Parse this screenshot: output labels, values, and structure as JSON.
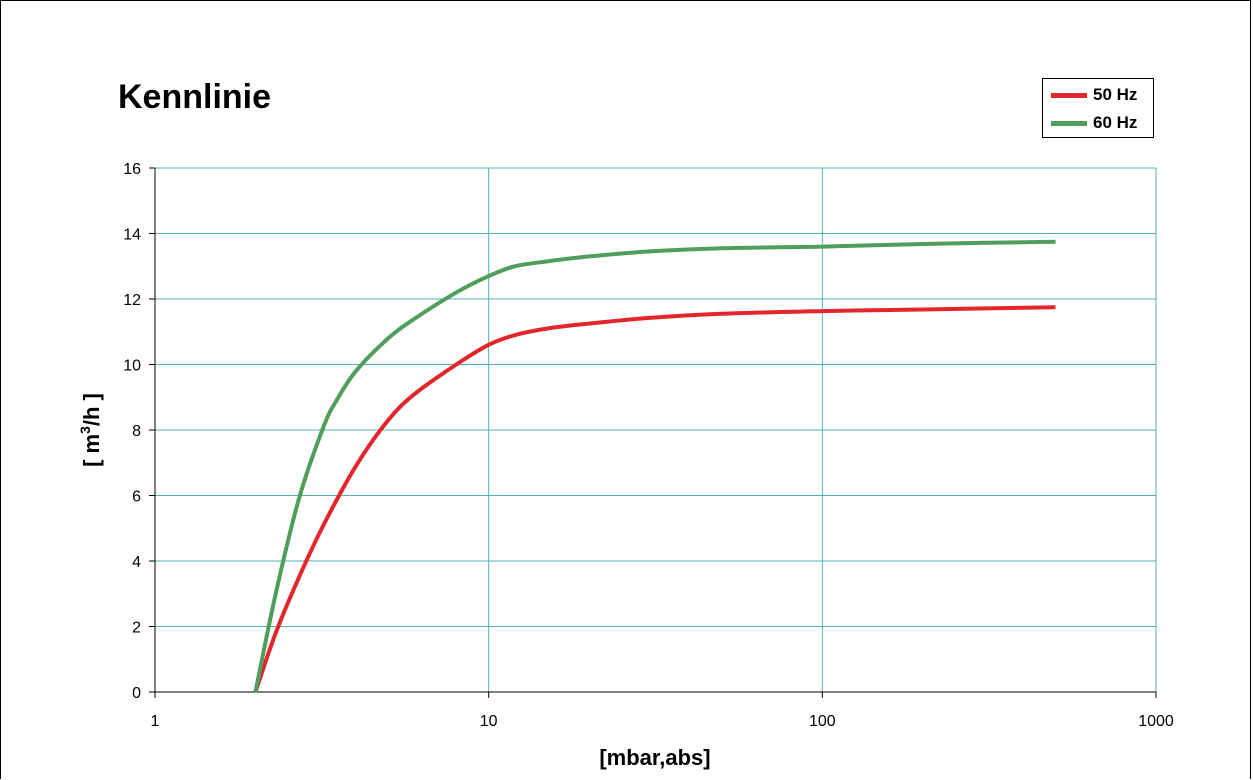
{
  "chart_data": {
    "type": "line",
    "title": "Kennlinie",
    "xlabel": "[mbar,abs]",
    "ylabel": "[ m³/h ]",
    "ylabel_parts": {
      "before": "[ m",
      "sup": "3",
      "after": "/h ]"
    },
    "x_scale": "log",
    "xlim": [
      1,
      1000
    ],
    "ylim": [
      0,
      16
    ],
    "x_ticks": [
      "1",
      "10",
      "100",
      "1000"
    ],
    "y_ticks": [
      "0",
      "2",
      "4",
      "6",
      "8",
      "10",
      "12",
      "14",
      "16"
    ],
    "grid": true,
    "legend_position": "top-right",
    "series": [
      {
        "name": "50 Hz",
        "color": "#e3262b",
        "x": [
          2,
          2.3,
          2.7,
          3.2,
          4,
          5,
          6,
          8,
          10,
          12,
          15,
          20,
          30,
          50,
          100,
          200,
          500
        ],
        "y": [
          0,
          1.8,
          3.5,
          5.1,
          6.9,
          8.3,
          9.1,
          10.0,
          10.6,
          10.9,
          11.1,
          11.25,
          11.42,
          11.55,
          11.63,
          11.68,
          11.75
        ]
      },
      {
        "name": "60 Hz",
        "color": "#4f9e5c",
        "x": [
          2,
          2.3,
          2.7,
          3.2,
          3.5,
          4,
          5,
          6,
          8,
          10,
          12,
          15,
          20,
          30,
          50,
          100,
          200,
          500
        ],
        "y": [
          0,
          3.0,
          5.9,
          8.1,
          8.9,
          9.8,
          10.8,
          11.4,
          12.2,
          12.7,
          13.0,
          13.15,
          13.3,
          13.45,
          13.55,
          13.6,
          13.68,
          13.75
        ]
      }
    ]
  },
  "colors": {
    "grid": "#4fb3b5",
    "axis": "#000000"
  }
}
